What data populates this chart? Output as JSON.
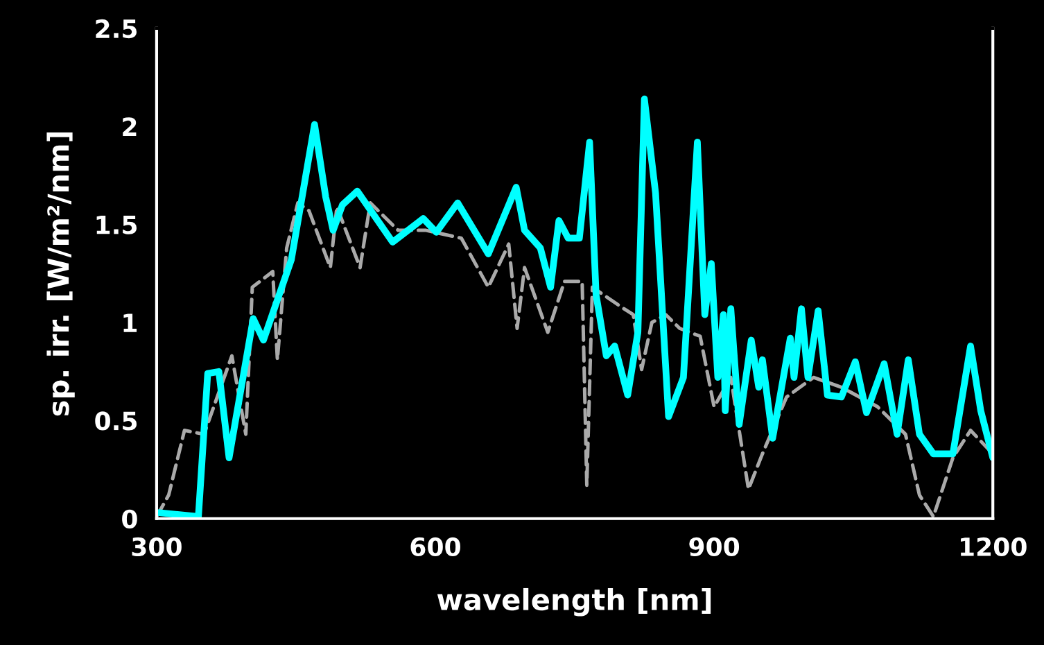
{
  "chart_data": {
    "type": "line",
    "xlabel": "wavelength [nm]",
    "ylabel": "sp. irr. [W/m²/nm]",
    "xlim": [
      300,
      1200
    ],
    "ylim": [
      0,
      2.5
    ],
    "xticks": [
      300,
      600,
      900,
      1200
    ],
    "yticks": [
      0,
      0.5,
      1,
      1.5,
      2,
      2.5
    ],
    "grid": false,
    "series": [
      {
        "color": "#aaaaaa",
        "line_style": "dashed",
        "x": [
          300,
          313,
          330,
          351,
          381,
          396,
          403,
          425,
          430,
          440,
          452,
          464,
          487,
          494,
          519,
          530,
          560,
          590,
          628,
          657,
          679,
          688,
          696,
          721,
          739,
          758,
          763,
          769,
          803,
          813,
          822,
          833,
          848,
          863,
          885,
          900,
          918,
          937,
          952,
          978,
          1007,
          1037,
          1076,
          1106,
          1121,
          1136,
          1157,
          1176,
          1200
        ],
        "values": [
          0.01,
          0.12,
          0.45,
          0.43,
          0.83,
          0.43,
          1.18,
          1.26,
          0.81,
          1.38,
          1.61,
          1.57,
          1.28,
          1.59,
          1.28,
          1.61,
          1.47,
          1.47,
          1.43,
          1.18,
          1.4,
          0.97,
          1.28,
          0.95,
          1.21,
          1.21,
          0.17,
          1.18,
          1.07,
          1.04,
          0.76,
          1.0,
          1.04,
          0.97,
          0.93,
          0.57,
          0.72,
          0.15,
          0.33,
          0.62,
          0.72,
          0.67,
          0.57,
          0.43,
          0.12,
          0.01,
          0.31,
          0.45,
          0.33
        ]
      },
      {
        "color": "#00ffff",
        "line_style": "solid",
        "x": [
          303,
          345,
          355,
          367,
          378,
          404,
          415,
          445,
          470,
          482,
          490,
          500,
          516,
          554,
          587,
          601,
          624,
          657,
          687,
          696,
          713,
          724,
          733,
          743,
          755,
          766,
          773,
          784,
          793,
          807,
          818,
          825,
          837,
          851,
          867,
          882,
          890,
          897,
          904,
          910,
          912,
          918,
          927,
          940,
          948,
          952,
          963,
          982,
          986,
          994,
          1001,
          1012,
          1022,
          1037,
          1052,
          1064,
          1083,
          1097,
          1109,
          1121,
          1136,
          1157,
          1176,
          1187,
          1200
        ],
        "values": [
          0.03,
          0.01,
          0.74,
          0.75,
          0.31,
          1.02,
          0.91,
          1.32,
          2.01,
          1.64,
          1.47,
          1.6,
          1.67,
          1.41,
          1.53,
          1.46,
          1.61,
          1.35,
          1.69,
          1.47,
          1.38,
          1.18,
          1.52,
          1.43,
          1.43,
          1.92,
          1.14,
          0.83,
          0.88,
          0.63,
          0.95,
          2.14,
          1.66,
          0.52,
          0.72,
          1.92,
          1.04,
          1.3,
          0.72,
          1.04,
          0.55,
          1.07,
          0.48,
          0.91,
          0.67,
          0.81,
          0.41,
          0.92,
          0.72,
          1.07,
          0.72,
          1.06,
          0.63,
          0.62,
          0.8,
          0.54,
          0.79,
          0.43,
          0.81,
          0.43,
          0.33,
          0.33,
          0.88,
          0.55,
          0.31
        ]
      }
    ]
  }
}
